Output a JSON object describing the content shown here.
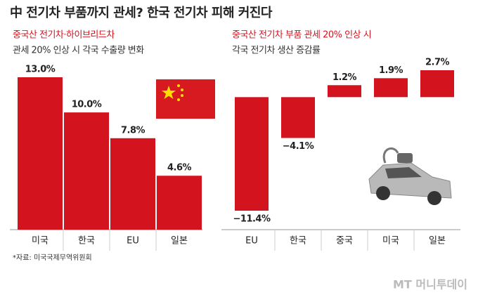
{
  "title": "中 전기차 부품까지 관세? 한국 전기차 피해 커진다",
  "source": "*자료: 미국국제무역위원회",
  "watermark": "MT 머니투데이",
  "chart_data": [
    {
      "type": "bar",
      "title": [
        "중국산 전기차·하이브리드차",
        "관세 20% 인상 시 각국 수출량 변화"
      ],
      "categories": [
        "미국",
        "한국",
        "EU",
        "일본"
      ],
      "values": [
        13.0,
        10.0,
        7.8,
        4.6
      ],
      "value_labels": [
        "13.0%",
        "10.0%",
        "7.8%",
        "4.6%"
      ],
      "color": "#d3141e"
    },
    {
      "type": "bar",
      "title": [
        "중국산 전기차 부품 관세 20% 인상 시",
        "각국 전기차 생산 증감률"
      ],
      "categories": [
        "EU",
        "한국",
        "중국",
        "미국",
        "일본"
      ],
      "values": [
        -11.4,
        -4.1,
        1.2,
        1.9,
        2.7
      ],
      "value_labels": [
        "−11.4%",
        "−4.1%",
        "1.2%",
        "1.9%",
        "2.7%"
      ],
      "color": "#d3141e"
    }
  ]
}
